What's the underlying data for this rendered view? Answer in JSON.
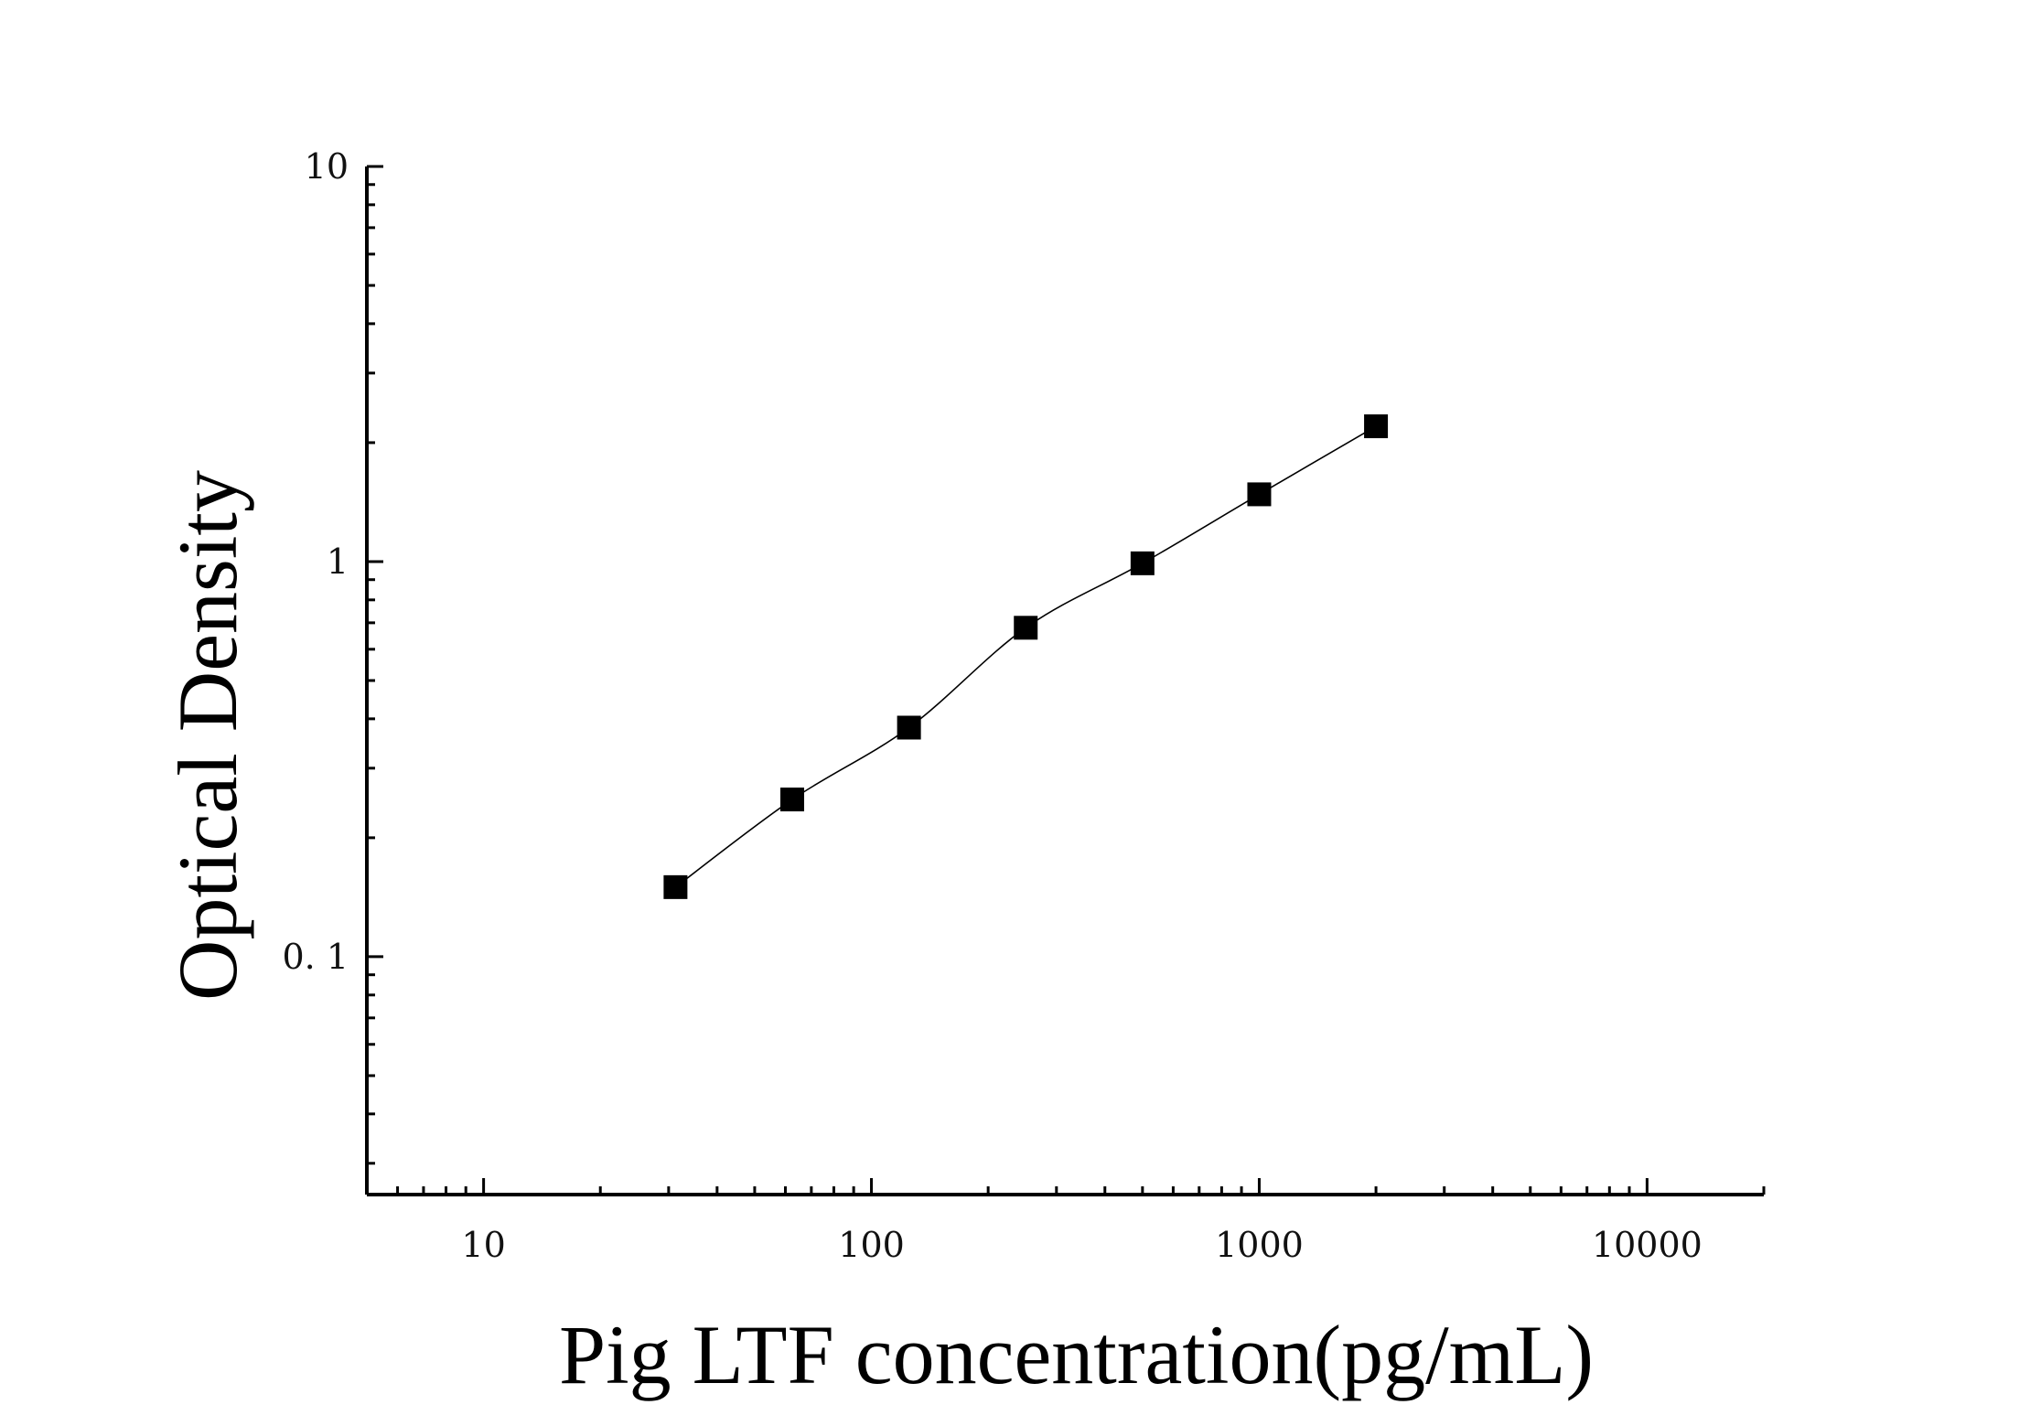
{
  "chart_data": {
    "type": "scatter",
    "title": "",
    "xlabel": "Pig LTF concentration(pg/mL)",
    "ylabel": "Optical Density",
    "x_scale": "log",
    "y_scale": "log",
    "xlim": [
      5,
      20000
    ],
    "ylim": [
      0.025,
      10
    ],
    "x_ticks": [
      {
        "value": 10,
        "label": "10"
      },
      {
        "value": 100,
        "label": "100"
      },
      {
        "value": 1000,
        "label": "1000"
      },
      {
        "value": 10000,
        "label": "10000"
      }
    ],
    "y_ticks": [
      {
        "value": 0.1,
        "label": "0. 1"
      },
      {
        "value": 1,
        "label": "1"
      },
      {
        "value": 10,
        "label": "10"
      }
    ],
    "grid": false,
    "legend": "none",
    "series": [
      {
        "marker": "square",
        "color": "#000000",
        "x": [
          31.25,
          62.5,
          125,
          250,
          500,
          1000,
          2000
        ],
        "y": [
          0.15,
          0.25,
          0.38,
          0.68,
          0.99,
          1.48,
          2.2
        ]
      }
    ],
    "fit_line": {
      "color": "#000000",
      "type": "smooth"
    }
  }
}
